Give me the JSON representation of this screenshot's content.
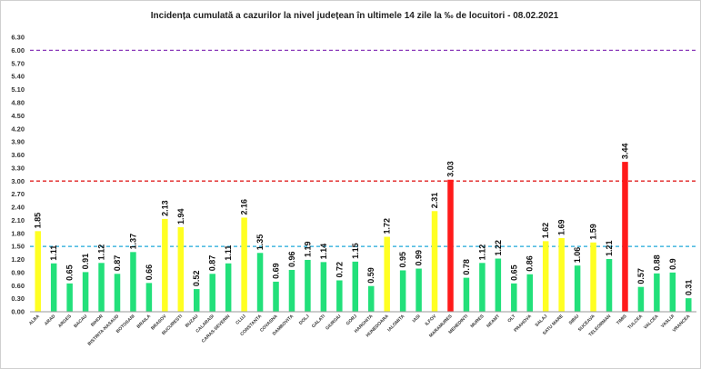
{
  "chart_data": {
    "type": "bar",
    "title": "Incidența cumulată a cazurilor la nivel județean în ultimele 14 zile   la ‰ de locuitori  - 08.02.2021",
    "xlabel": "",
    "ylabel": "",
    "ylim": [
      0,
      6.3
    ],
    "yticks": [
      "0.00",
      "0.30",
      "0.60",
      "0.90",
      "1.20",
      "1.50",
      "1.80",
      "2.10",
      "2.40",
      "2.70",
      "3.00",
      "3.30",
      "3.60",
      "3.90",
      "4.20",
      "4.50",
      "4.80",
      "5.10",
      "5.40",
      "5.70",
      "6.00",
      "6.30"
    ],
    "grid": false,
    "legend": "none",
    "categories": [
      "ALBA",
      "ARAD",
      "ARGES",
      "BACAU",
      "BIHOR",
      "BISTRITA-NASAUD",
      "BOTOSANI",
      "BRAILA",
      "BRASOV",
      "BUCURESTI",
      "BUZAU",
      "CALARASI",
      "CARAS-SEVERIN",
      "CLUJ",
      "CONSTANTA",
      "COVASNA",
      "DAMBOVITA",
      "DOLJ",
      "GALATI",
      "GIURGIU",
      "GORJ",
      "HARGHITA",
      "HUNEDOARA",
      "IALOMITA",
      "IASI",
      "ILFOV",
      "MARAMURES",
      "MEHEDINTI",
      "MURES",
      "NEAMT",
      "OLT",
      "PRAHOVA",
      "SALAJ",
      "SATU MARE",
      "SIBIU",
      "SUCEAVA",
      "TELEORMAN",
      "TIMIS",
      "TULCEA",
      "VALCEA",
      "VASLUI",
      "VRANCEA"
    ],
    "values": [
      1.85,
      1.11,
      0.65,
      0.91,
      1.12,
      0.87,
      1.37,
      0.66,
      2.13,
      1.94,
      0.52,
      0.87,
      1.11,
      2.16,
      1.35,
      0.69,
      0.96,
      1.19,
      1.14,
      0.72,
      1.15,
      0.59,
      1.72,
      0.95,
      0.99,
      2.31,
      3.03,
      0.78,
      1.12,
      1.22,
      0.65,
      0.86,
      1.62,
      1.69,
      1.06,
      1.59,
      1.21,
      3.44,
      0.57,
      0.88,
      0.9,
      0.31
    ],
    "data_labels": [
      "1.85",
      "1.11",
      "0.65",
      "0.91",
      "1.12",
      "0.87",
      "1.37",
      "0.66",
      "2.13",
      "1.94",
      "0.52",
      "0.87",
      "1.11",
      "2.16",
      "1.35",
      "0.69",
      "0.96",
      "1.19",
      "1.14",
      "0.72",
      "1.15",
      "0.59",
      "1.72",
      "0.95",
      "0.99",
      "2.31",
      "3.03",
      "0.78",
      "1.12",
      "1.22",
      "0.65",
      "0.86",
      "1.62",
      "1.69",
      "1.06",
      "1.59",
      "1.21",
      "3.44",
      "0.57",
      "0.88",
      "0.9",
      "0.31"
    ],
    "thresholds": [
      {
        "value": 1.5,
        "color": "#1fa8d8",
        "style": "dashed"
      },
      {
        "value": 3.0,
        "color": "#e02020",
        "style": "dashed"
      },
      {
        "value": 6.0,
        "color": "#8a3ab9",
        "style": "dashed"
      }
    ],
    "colors": {
      "green": "#22e07a",
      "yellow": "#ffff22",
      "red": "#ff1a1a",
      "axis": "#999999"
    }
  }
}
